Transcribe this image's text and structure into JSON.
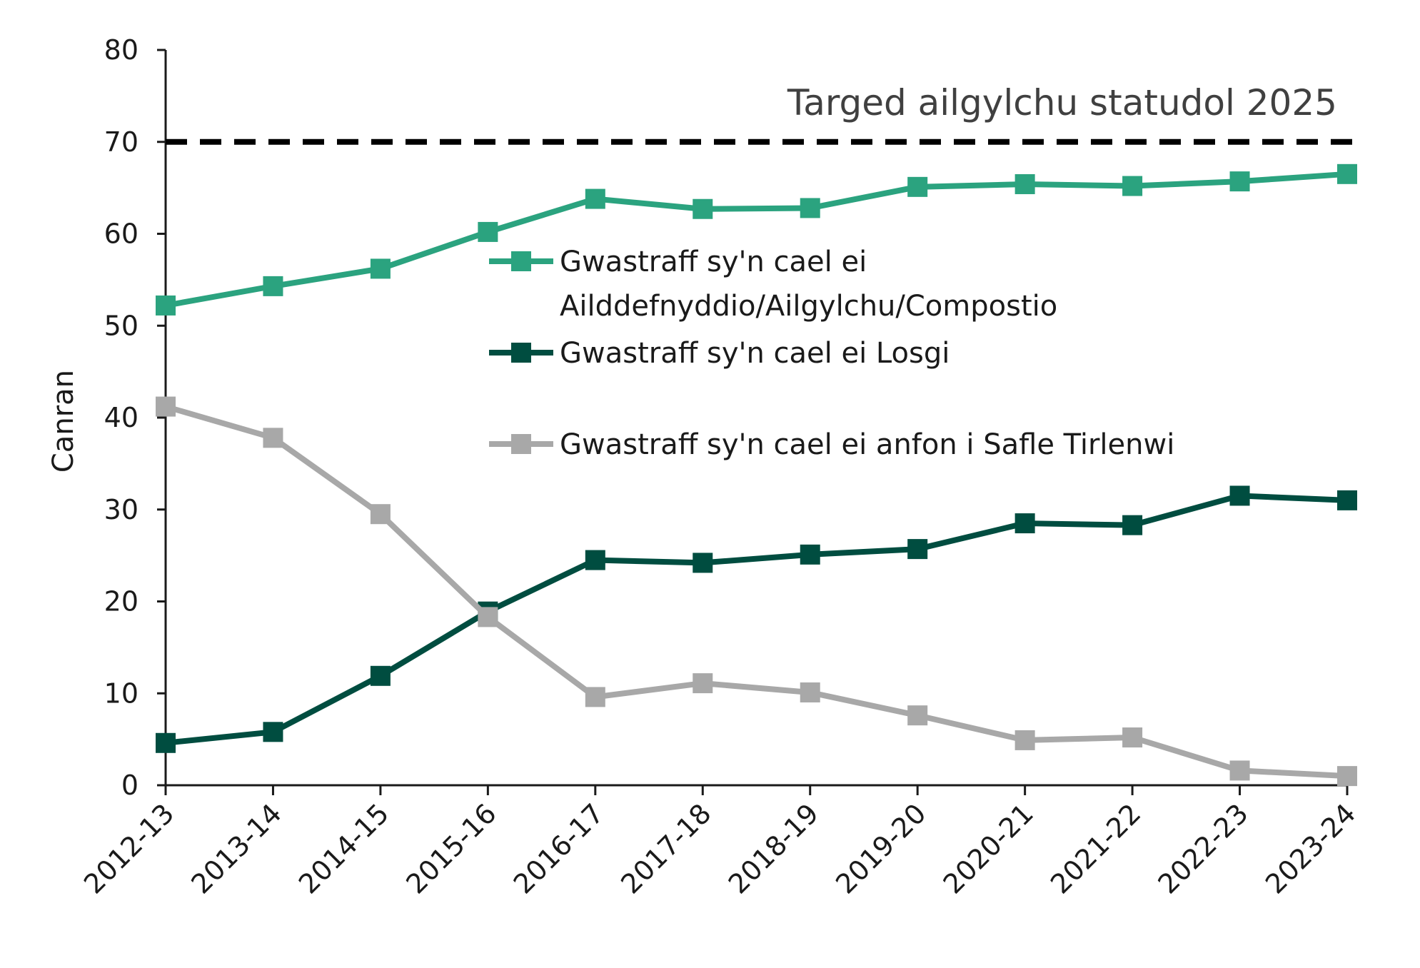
{
  "chart_data": {
    "type": "line",
    "ylabel": "Canran",
    "ylim": [
      0,
      80
    ],
    "yticks": [
      "0",
      "10",
      "20",
      "30",
      "40",
      "50",
      "60",
      "70",
      "80"
    ],
    "categories": [
      "2012-13",
      "2013-14",
      "2014-15",
      "2015-16",
      "2016-17",
      "2017-18",
      "2018-19",
      "2019-20",
      "2020-21",
      "2021-22",
      "2022-23",
      "2023-24"
    ],
    "series": [
      {
        "name": "Gwastraff sy'n cael ei Ailddefnyddio/Ailgylchu/Compostio",
        "legend_lines": [
          "Gwastraff sy'n cael ei",
          "Ailddefnyddio/Ailgylchu/Compostio"
        ],
        "color": "#2ba37f",
        "values": [
          52.2,
          54.3,
          56.2,
          60.2,
          63.8,
          62.7,
          62.8,
          65.1,
          65.4,
          65.2,
          65.7,
          66.5
        ]
      },
      {
        "name": "Gwastraff sy'n cael ei Losgi",
        "legend_lines": [
          "Gwastraff sy'n cael ei Losgi"
        ],
        "color": "#004d40",
        "values": [
          4.6,
          5.8,
          11.9,
          18.9,
          24.5,
          24.2,
          25.1,
          25.7,
          28.5,
          28.3,
          31.5,
          31.0
        ]
      },
      {
        "name": "Gwastraff sy'n cael ei anfon i Safle Tirlenwi",
        "legend_lines": [
          "Gwastraff sy'n cael ei anfon i Safle Tirlenwi"
        ],
        "color": "#a8a8a8",
        "values": [
          41.2,
          37.8,
          29.5,
          18.3,
          9.6,
          11.1,
          10.1,
          7.6,
          4.9,
          5.2,
          1.6,
          1.0
        ]
      }
    ],
    "reference_line": {
      "value": 70,
      "label": "Targed ailgylchu statudol 2025",
      "color": "#000000",
      "style": "dashed"
    },
    "grid": false,
    "legend_position": "center-right"
  }
}
